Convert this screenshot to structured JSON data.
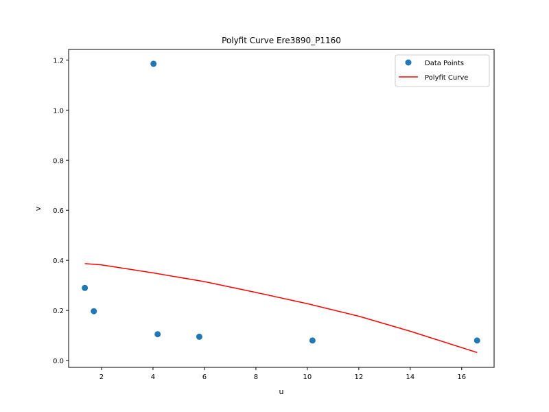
{
  "chart_data": {
    "type": "scatter",
    "title": "Polyfit Curve Ere3890_P1160",
    "xlabel": "u",
    "ylabel": "v",
    "xlim": [
      0.72,
      17.26
    ],
    "ylim": [
      -0.0273,
      1.2423
    ],
    "x_ticks": [
      2,
      4,
      6,
      8,
      10,
      12,
      14,
      16
    ],
    "y_ticks": [
      0.0,
      0.2,
      0.4,
      0.6,
      0.8,
      1.0,
      1.2
    ],
    "x_tick_labels": [
      "2",
      "4",
      "6",
      "8",
      "10",
      "12",
      "14",
      "16"
    ],
    "y_tick_labels": [
      "0.0",
      "0.2",
      "0.4",
      "0.6",
      "0.8",
      "1.0",
      "1.2"
    ],
    "grid": false,
    "legend_position": "top-right",
    "series": [
      {
        "name": "Data Points",
        "kind": "scatter",
        "color": "#1f77b4",
        "points": [
          {
            "x": 1.35,
            "y": 0.29
          },
          {
            "x": 1.7,
            "y": 0.197
          },
          {
            "x": 4.02,
            "y": 1.185
          },
          {
            "x": 4.18,
            "y": 0.105
          },
          {
            "x": 5.8,
            "y": 0.095
          },
          {
            "x": 10.2,
            "y": 0.08
          },
          {
            "x": 16.6,
            "y": 0.08
          }
        ]
      },
      {
        "name": "Polyfit Curve",
        "kind": "line",
        "color": "#ff0000",
        "points": [
          {
            "x": 1.35,
            "y": 0.387
          },
          {
            "x": 2.0,
            "y": 0.382
          },
          {
            "x": 4.0,
            "y": 0.35
          },
          {
            "x": 6.0,
            "y": 0.315
          },
          {
            "x": 8.0,
            "y": 0.272
          },
          {
            "x": 10.0,
            "y": 0.227
          },
          {
            "x": 12.0,
            "y": 0.177
          },
          {
            "x": 14.0,
            "y": 0.117
          },
          {
            "x": 16.6,
            "y": 0.032
          }
        ]
      }
    ]
  }
}
